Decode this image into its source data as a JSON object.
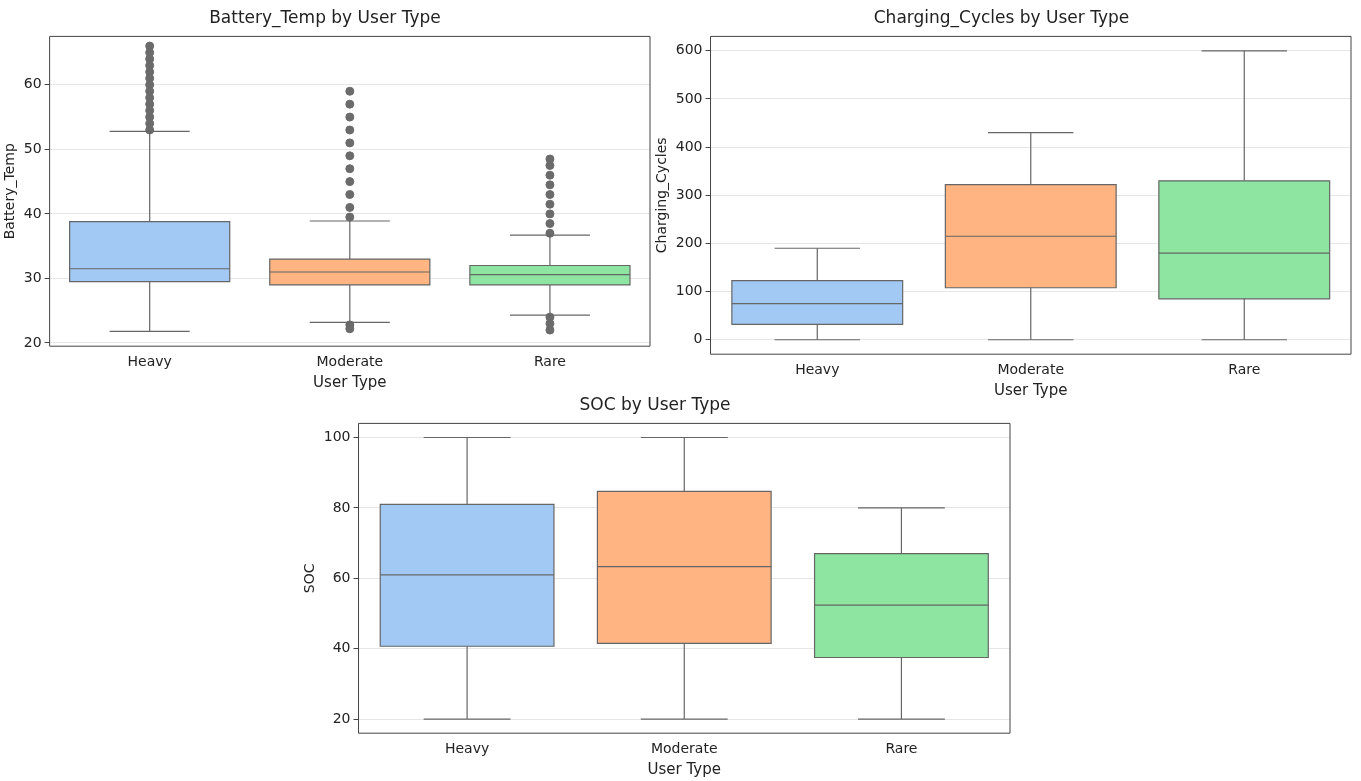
{
  "chart_data": [
    {
      "type": "box",
      "title": "Battery_Temp by User Type",
      "xlabel": "User Type",
      "ylabel": "Battery_Temp",
      "categories": [
        "Heavy",
        "Moderate",
        "Rare"
      ],
      "colors": [
        "#a1c9f4",
        "#ffb482",
        "#8de5a1"
      ],
      "ylim": [
        19.5,
        67.5
      ],
      "yticks": [
        20,
        30,
        40,
        50,
        60
      ],
      "grid": "y",
      "boxes": [
        {
          "low": 21.8,
          "q1": 29.5,
          "median": 31.5,
          "q3": 38.8,
          "high": 52.8,
          "outliers": [
            53,
            54,
            55,
            56,
            57,
            58,
            59,
            60,
            61,
            62,
            63,
            64,
            65,
            66
          ]
        },
        {
          "low": 23.2,
          "q1": 29,
          "median": 31,
          "q3": 33,
          "high": 38.9,
          "outliers": [
            22.2,
            22.8,
            39.5,
            41,
            43,
            45,
            47,
            49,
            51,
            53,
            55,
            57,
            59
          ]
        },
        {
          "low": 24.3,
          "q1": 29,
          "median": 30.6,
          "q3": 32,
          "high": 36.7,
          "outliers": [
            22,
            23,
            24,
            37,
            38.5,
            40,
            41.5,
            43,
            44.5,
            46,
            47.5,
            48.5
          ]
        }
      ]
    },
    {
      "type": "box",
      "title": "Charging_Cycles by User Type",
      "xlabel": "User Type",
      "ylabel": "Charging_Cycles",
      "categories": [
        "Heavy",
        "Moderate",
        "Rare"
      ],
      "colors": [
        "#a1c9f4",
        "#ffb482",
        "#8de5a1"
      ],
      "ylim": [
        -30,
        630
      ],
      "yticks": [
        0,
        100,
        200,
        300,
        400,
        500,
        600
      ],
      "grid": "y",
      "boxes": [
        {
          "low": 0,
          "q1": 32,
          "median": 75,
          "q3": 123,
          "high": 190
        },
        {
          "low": 0,
          "q1": 108,
          "median": 215,
          "q3": 322,
          "high": 430
        },
        {
          "low": 0,
          "q1": 85,
          "median": 180,
          "q3": 330,
          "high": 600
        }
      ]
    },
    {
      "type": "box",
      "title": "SOC by User Type",
      "xlabel": "User Type",
      "ylabel": "SOC",
      "categories": [
        "Heavy",
        "Moderate",
        "Rare"
      ],
      "colors": [
        "#a1c9f4",
        "#ffb482",
        "#8de5a1"
      ],
      "ylim": [
        16,
        104
      ],
      "yticks": [
        20,
        40,
        60,
        80,
        100
      ],
      "grid": "y",
      "boxes": [
        {
          "low": 20,
          "q1": 40.7,
          "median": 61,
          "q3": 81,
          "high": 100
        },
        {
          "low": 20,
          "q1": 41.5,
          "median": 63.3,
          "q3": 84.7,
          "high": 100
        },
        {
          "low": 20,
          "q1": 37.5,
          "median": 52.4,
          "q3": 67,
          "high": 80
        }
      ]
    }
  ]
}
